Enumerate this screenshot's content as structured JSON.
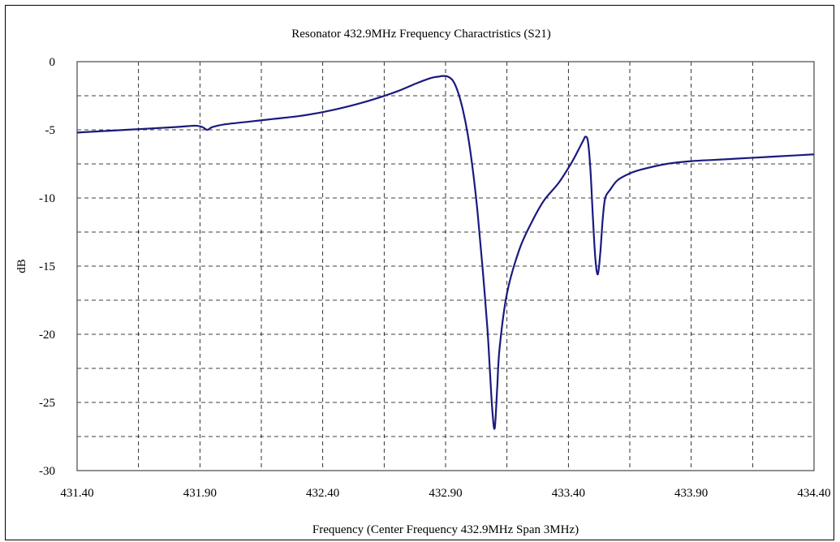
{
  "chart_data": {
    "type": "line",
    "title": "Resonator 432.9MHz Frequency Charactristics (S21)",
    "xlabel": "Frequency (Center Frequency 432.9MHz Span 3MHz)",
    "ylabel": "dB",
    "xlim": [
      431.4,
      434.4
    ],
    "ylim": [
      -30,
      0
    ],
    "x_ticks": [
      "431.40",
      "431.90",
      "432.40",
      "432.90",
      "433.40",
      "433.90",
      "434.40"
    ],
    "y_ticks": [
      "0",
      "-5",
      "-10",
      "-15",
      "-20",
      "-25",
      "-30"
    ],
    "grid": true,
    "line_color": "#1a1a80",
    "series": [
      {
        "name": "",
        "x": [
          431.4,
          431.6,
          431.8,
          431.88,
          431.91,
          431.93,
          431.95,
          432.0,
          432.1,
          432.2,
          432.3,
          432.4,
          432.5,
          432.6,
          432.7,
          432.78,
          432.84,
          432.87,
          432.89,
          432.91,
          432.93,
          432.95,
          432.97,
          432.99,
          433.01,
          433.03,
          433.05,
          433.07,
          433.08,
          433.09,
          433.1,
          433.11,
          433.12,
          433.15,
          433.2,
          433.25,
          433.3,
          433.36,
          433.41,
          433.44,
          433.46,
          433.47,
          433.48,
          433.49,
          433.5,
          433.51,
          433.52,
          433.53,
          433.54,
          433.55,
          433.57,
          433.6,
          433.65,
          433.7,
          433.8,
          433.9,
          434.0,
          434.1,
          434.2,
          434.3,
          434.4
        ],
        "values": [
          -5.2,
          -5.0,
          -4.8,
          -4.7,
          -4.8,
          -5.0,
          -4.8,
          -4.6,
          -4.4,
          -4.2,
          -4.0,
          -3.7,
          -3.3,
          -2.8,
          -2.2,
          -1.6,
          -1.2,
          -1.1,
          -1.05,
          -1.1,
          -1.4,
          -2.2,
          -3.5,
          -5.3,
          -7.8,
          -11.0,
          -15.0,
          -19.5,
          -22.5,
          -25.5,
          -26.9,
          -24.0,
          -21.0,
          -17.0,
          -13.8,
          -11.8,
          -10.2,
          -8.9,
          -7.5,
          -6.5,
          -5.8,
          -5.5,
          -5.9,
          -8.0,
          -11.5,
          -14.5,
          -15.6,
          -14.0,
          -11.5,
          -10.0,
          -9.4,
          -8.7,
          -8.2,
          -7.9,
          -7.5,
          -7.3,
          -7.2,
          -7.1,
          -7.0,
          -6.9,
          -6.8
        ]
      }
    ]
  }
}
